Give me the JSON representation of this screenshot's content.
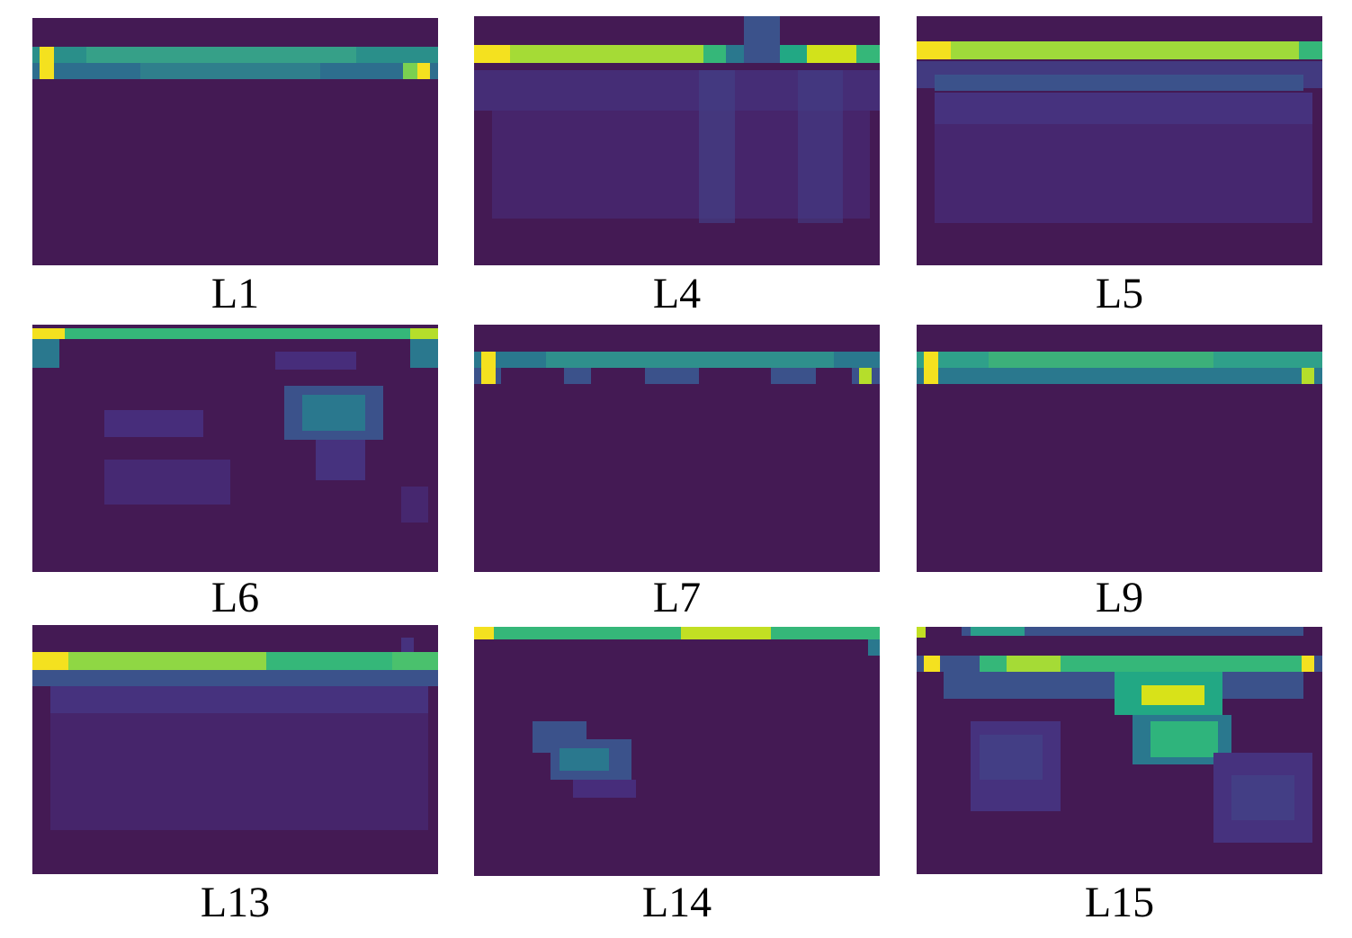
{
  "figure": {
    "colormap": "viridis",
    "background_color": "#441a54",
    "panels": [
      {
        "id": "l1",
        "label": "L1"
      },
      {
        "id": "l4",
        "label": "L4"
      },
      {
        "id": "l5",
        "label": "L5"
      },
      {
        "id": "l6",
        "label": "L6"
      },
      {
        "id": "l7",
        "label": "L7"
      },
      {
        "id": "l9",
        "label": "L9"
      },
      {
        "id": "l13",
        "label": "L13"
      },
      {
        "id": "l14",
        "label": "L14"
      },
      {
        "id": "l15",
        "label": "L15"
      }
    ]
  }
}
